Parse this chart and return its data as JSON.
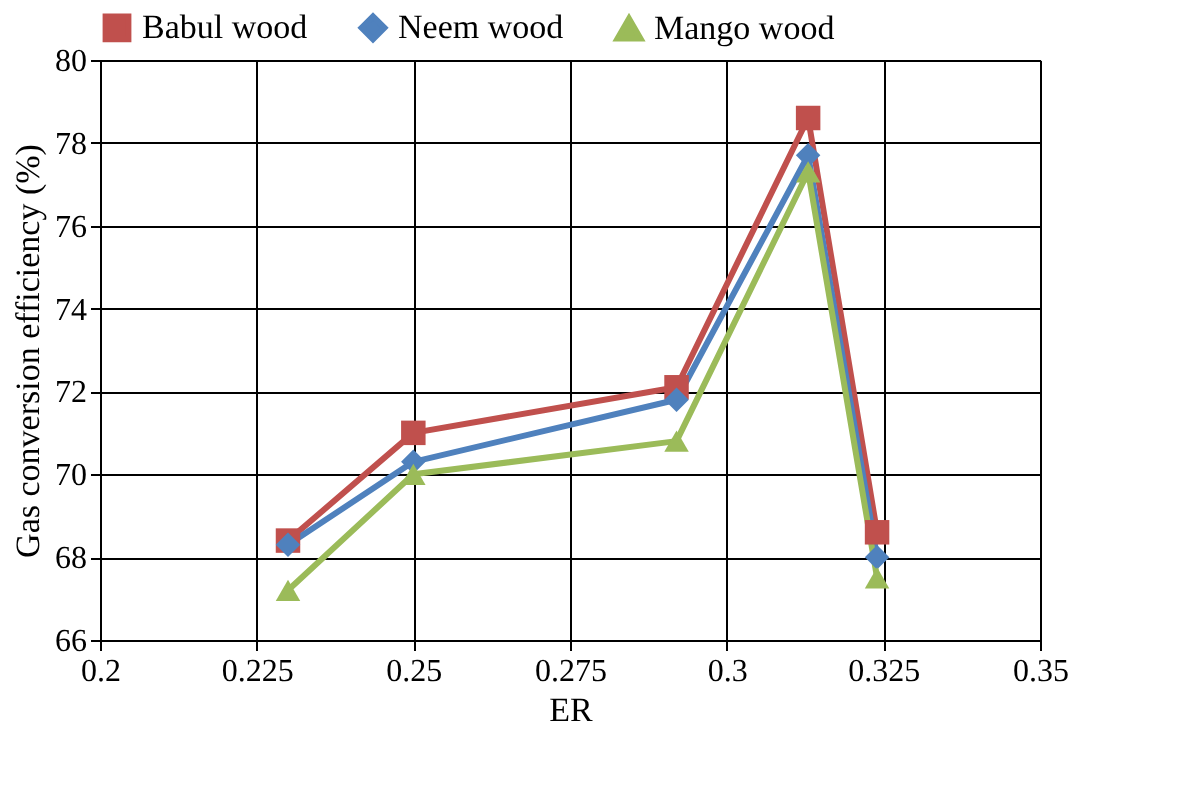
{
  "chart_data": {
    "type": "line",
    "xlabel": "ER",
    "ylabel": "Gas conversion efficiency (%)",
    "x": [
      0.23,
      0.25,
      0.292,
      0.313,
      0.324
    ],
    "series": [
      {
        "name": "Babul wood",
        "color": "#c0504d",
        "marker": "square",
        "values": [
          68.4,
          71.0,
          72.1,
          78.6,
          68.6
        ]
      },
      {
        "name": "Neem wood",
        "color": "#4f81bd",
        "marker": "diamond",
        "values": [
          68.3,
          70.3,
          71.8,
          77.7,
          68.0
        ]
      },
      {
        "name": "Mango wood",
        "color": "#9bbb59",
        "marker": "triangle",
        "values": [
          67.2,
          70.0,
          70.8,
          77.3,
          67.5
        ]
      }
    ],
    "xlim": [
      0.2,
      0.35
    ],
    "xticks": [
      0.2,
      0.225,
      0.25,
      0.275,
      0.3,
      0.325,
      0.35
    ],
    "ylim": [
      66,
      80
    ],
    "yticks": [
      66,
      68,
      70,
      72,
      74,
      76,
      78,
      80
    ],
    "grid": true,
    "legend": "top",
    "line_style": "solid"
  }
}
